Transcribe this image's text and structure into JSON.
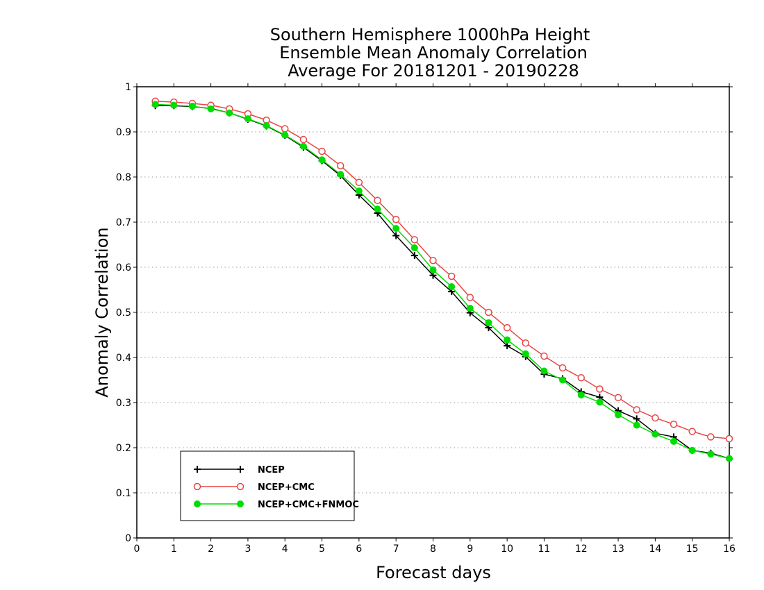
{
  "chart_data": {
    "type": "line",
    "title": [
      "Southern Hemisphere 1000hPa Height",
      "Ensemble Mean Anomaly Correlation",
      "Average For 20181201 - 20190228"
    ],
    "xlabel": "Forecast days",
    "ylabel": "Anomaly Correlation",
    "xlim": [
      0,
      16
    ],
    "ylim": [
      0,
      1
    ],
    "x_ticks": [
      "0",
      "1",
      "2",
      "3",
      "4",
      "5",
      "6",
      "7",
      "8",
      "9",
      "10",
      "11",
      "12",
      "13",
      "14",
      "15",
      "16"
    ],
    "y_ticks": [
      "0",
      "0.1",
      "0.2",
      "0.3",
      "0.4",
      "0.5",
      "0.6",
      "0.7",
      "0.8",
      "0.9",
      "1"
    ],
    "grid": "horizontal-dotted",
    "legend_position": "bottom-left",
    "x": [
      0.5,
      1,
      1.5,
      2,
      2.5,
      3,
      3.5,
      4,
      4.5,
      5,
      5.5,
      6,
      6.5,
      7,
      7.5,
      8,
      8.5,
      9,
      9.5,
      10,
      10.5,
      11,
      11.5,
      12,
      12.5,
      13,
      13.5,
      14,
      14.5,
      15,
      15.5,
      16
    ],
    "series": [
      {
        "name": "NCEP",
        "color": "#000000",
        "marker": "plus",
        "values": [
          0.958,
          0.958,
          0.956,
          0.952,
          0.942,
          0.928,
          0.913,
          0.892,
          0.866,
          0.836,
          0.803,
          0.76,
          0.72,
          0.67,
          0.626,
          0.582,
          0.546,
          0.499,
          0.466,
          0.426,
          0.402,
          0.363,
          0.353,
          0.324,
          0.312,
          0.282,
          0.264,
          0.232,
          0.224,
          0.194,
          0.188,
          0.176
        ]
      },
      {
        "name": "NCEP+CMC",
        "color": "#e84646",
        "marker": "open-circle",
        "values": [
          0.968,
          0.966,
          0.963,
          0.959,
          0.951,
          0.94,
          0.926,
          0.907,
          0.883,
          0.857,
          0.825,
          0.788,
          0.748,
          0.706,
          0.661,
          0.615,
          0.58,
          0.533,
          0.5,
          0.466,
          0.432,
          0.403,
          0.377,
          0.355,
          0.33,
          0.311,
          0.284,
          0.266,
          0.252,
          0.236,
          0.224,
          0.22
        ]
      },
      {
        "name": "NCEP+CMC+FNMOC",
        "color": "#00dd00",
        "marker": "filled-circle",
        "values": [
          0.961,
          0.959,
          0.957,
          0.951,
          0.942,
          0.929,
          0.914,
          0.893,
          0.868,
          0.838,
          0.806,
          0.769,
          0.729,
          0.686,
          0.643,
          0.594,
          0.557,
          0.509,
          0.477,
          0.439,
          0.408,
          0.37,
          0.35,
          0.317,
          0.301,
          0.273,
          0.25,
          0.23,
          0.214,
          0.194,
          0.186,
          0.176
        ]
      }
    ]
  }
}
